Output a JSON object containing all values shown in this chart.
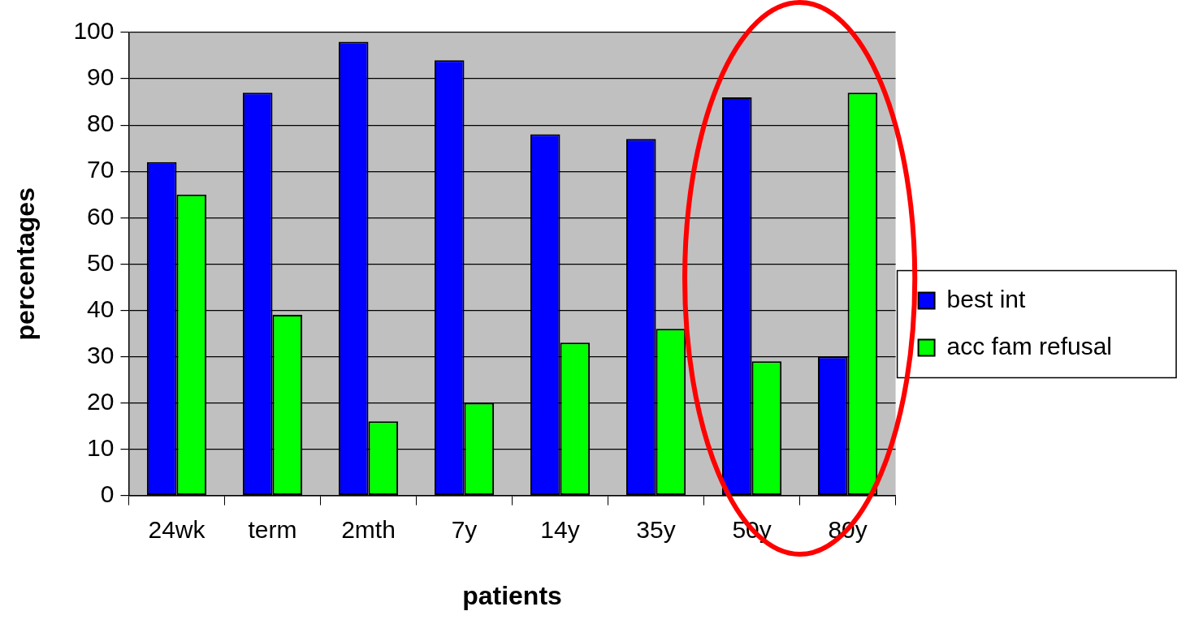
{
  "chart_data": {
    "type": "bar",
    "xlabel": "patients",
    "ylabel": "percentages",
    "categories": [
      "24wk",
      "term",
      "2mth",
      "7y",
      "14y",
      "35y",
      "50y",
      "80y"
    ],
    "series": [
      {
        "name": "best int",
        "color": "#0000ff",
        "values": [
          72,
          87,
          98,
          94,
          78,
          77,
          86,
          30
        ]
      },
      {
        "name": "acc fam refusal",
        "color": "#00ff00",
        "values": [
          65,
          39,
          16,
          20,
          33,
          36,
          29,
          87
        ]
      }
    ],
    "ylim": [
      0,
      100
    ],
    "yticks": [
      0,
      10,
      20,
      30,
      40,
      50,
      60,
      70,
      80,
      90,
      100
    ],
    "grid": "y",
    "legend": "right"
  }
}
